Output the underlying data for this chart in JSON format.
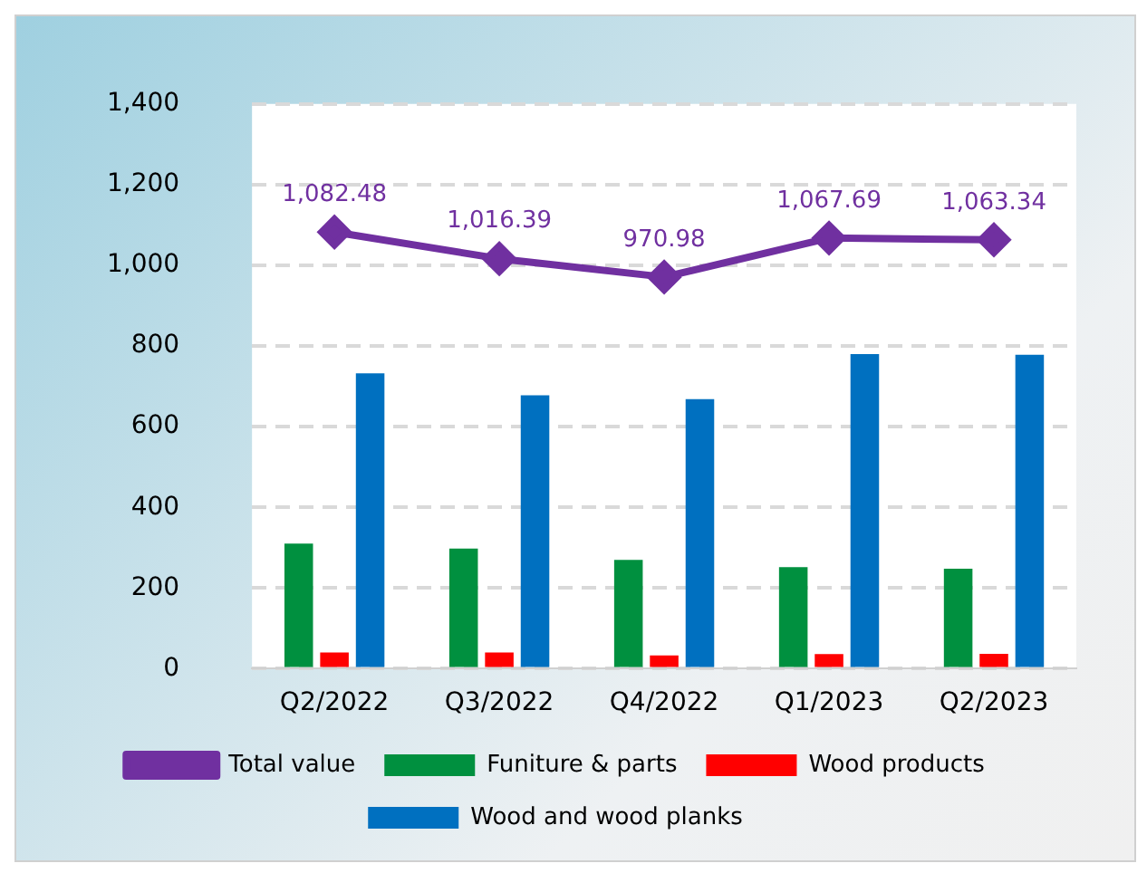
{
  "chart_data": {
    "type": "bar",
    "categories": [
      "Q2/2022",
      "Q3/2022",
      "Q4/2022",
      "Q1/2023",
      "Q2/2023"
    ],
    "series": [
      {
        "name": "Funiture & parts",
        "color": "#00903f",
        "values": [
          310,
          298,
          270,
          252,
          248
        ]
      },
      {
        "name": "Wood products",
        "color": "#ff0000",
        "values": [
          40,
          40,
          33,
          36,
          37
        ]
      },
      {
        "name": "Wood and wood planks",
        "color": "#0070c0",
        "values": [
          732,
          678,
          668,
          780,
          778
        ]
      },
      {
        "name": "Total value",
        "type": "line",
        "color": "#7030a0",
        "marker": "diamond",
        "values": [
          1082.48,
          1016.39,
          970.98,
          1067.69,
          1063.34
        ],
        "value_labels": [
          "1,082.48",
          "1,016.39",
          "970.98",
          "1,067.69",
          "1,063.34"
        ]
      }
    ],
    "ylim": [
      0,
      1400
    ],
    "yticks": [
      0,
      200,
      400,
      600,
      800,
      {
        "value": 1000,
        "label": "1,000"
      },
      {
        "value": 1200,
        "label": "1,200"
      },
      {
        "value": 1400,
        "label": "1,400"
      }
    ],
    "grid": "y",
    "legend": "bottom"
  }
}
